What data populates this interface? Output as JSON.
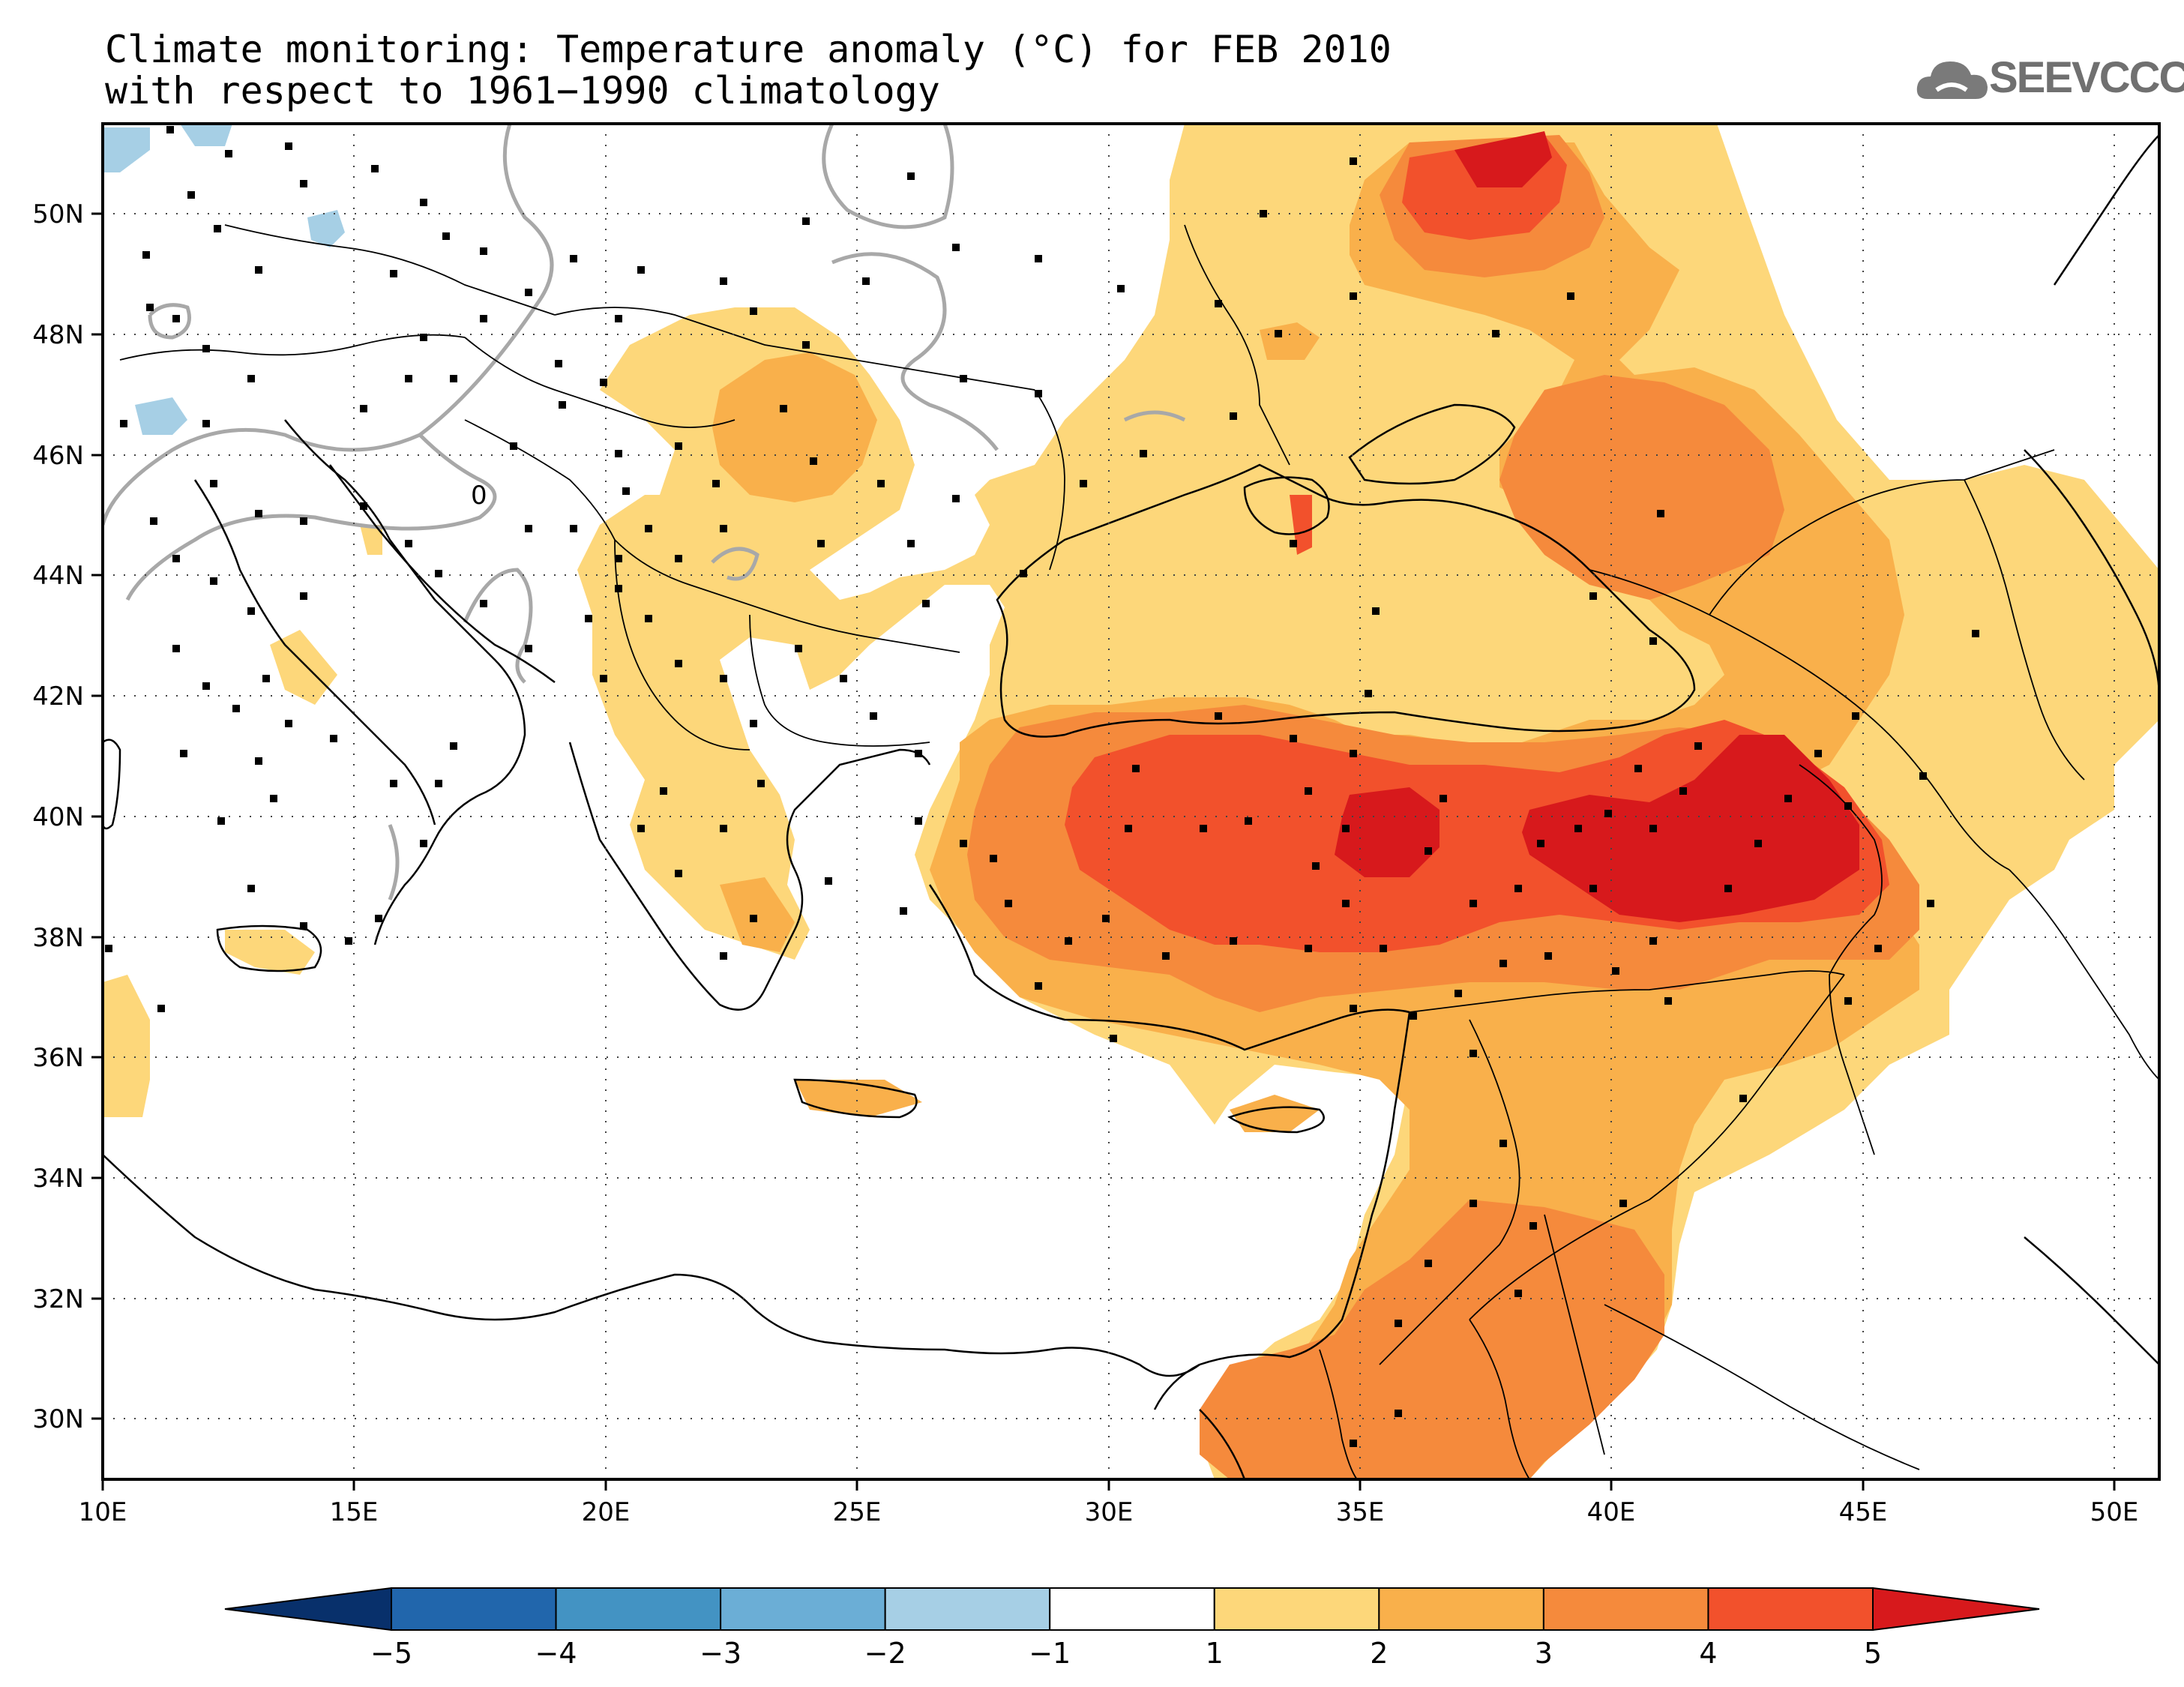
{
  "title": {
    "line1": "Climate monitoring: Temperature anomaly (°C) for FEB 2010",
    "line2": "with respect to 1961−1990 climatology"
  },
  "logo": {
    "text": "SEEVCCC"
  },
  "axes": {
    "lon_labels": [
      "10E",
      "15E",
      "20E",
      "25E",
      "30E",
      "35E",
      "40E",
      "45E",
      "50E"
    ],
    "lat_labels": [
      "50N",
      "48N",
      "46N",
      "44N",
      "42N",
      "40N",
      "38N",
      "36N",
      "34N",
      "32N",
      "30N"
    ],
    "lon_values": [
      10,
      15,
      20,
      25,
      30,
      35,
      40,
      45,
      50
    ],
    "lat_values": [
      50,
      48,
      46,
      44,
      42,
      40,
      38,
      36,
      34,
      32,
      30
    ],
    "lon_range": [
      10,
      51
    ],
    "lat_range": [
      29,
      51.5
    ]
  },
  "contour_label": "0",
  "colorbar": {
    "labels": [
      "−5",
      "−4",
      "−3",
      "−2",
      "−1",
      "1",
      "2",
      "3",
      "4",
      "5"
    ],
    "colors": [
      "#08306b",
      "#2166ac",
      "#4393c3",
      "#6baed6",
      "#a6cfe5",
      "#ffffff",
      "#fdd77a",
      "#f9b04b",
      "#f58a3c",
      "#f2512c",
      "#d7191c"
    ]
  },
  "legend_colors": {
    "level_1_2": "#fdd77a",
    "level_2_3": "#f9b04b",
    "level_3_4": "#f58a3c",
    "level_4_5": "#f2512c",
    "level_gt5": "#d7191c",
    "level_m1_m2": "#a6cfe5",
    "zero_contour": "#a8a8a8"
  }
}
